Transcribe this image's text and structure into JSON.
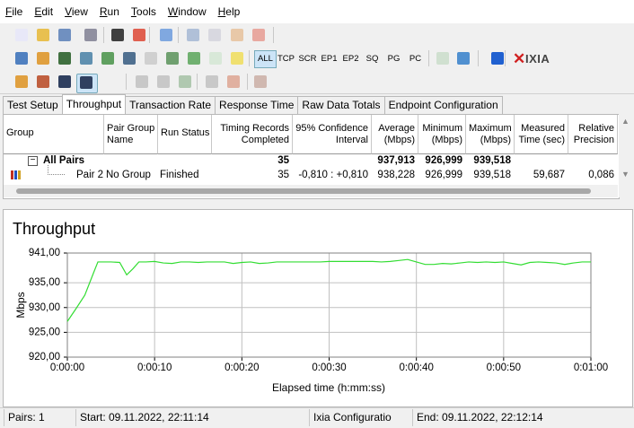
{
  "menu": [
    "File",
    "Edit",
    "View",
    "Run",
    "Tools",
    "Window",
    "Help"
  ],
  "toolbar": {
    "filters": [
      "ALL",
      "TCP",
      "SCR",
      "EP1",
      "EP2",
      "SQ",
      "PG",
      "PC"
    ],
    "pressed_filter": 0,
    "logo": "IXIA"
  },
  "tabs": {
    "items": [
      "Test Setup",
      "Throughput",
      "Transaction Rate",
      "Response Time",
      "Raw Data Totals",
      "Endpoint Configuration"
    ],
    "active": 1
  },
  "table": {
    "columns": [
      [
        "Group"
      ],
      [
        "Pair Group",
        "Name"
      ],
      [
        "Run Status"
      ],
      [
        "Timing Records",
        "Completed"
      ],
      [
        "95% Confidence",
        "Interval"
      ],
      [
        "Average",
        "(Mbps)"
      ],
      [
        "Minimum",
        "(Mbps)"
      ],
      [
        "Maximum",
        "(Mbps)"
      ],
      [
        "Measured",
        "Time (sec)"
      ],
      [
        "Relative",
        "Precision"
      ]
    ],
    "rows": [
      [
        "All Pairs",
        null,
        null,
        "35",
        null,
        "937,913",
        "926,999",
        "939,518",
        null,
        null
      ],
      [
        "Pair 2",
        "No Group",
        "Finished",
        "35",
        "-0,810 : +0,810",
        "938,228",
        "926,999",
        "939,518",
        "59,687",
        "0,086"
      ]
    ]
  },
  "chart_data": {
    "type": "line",
    "title": "Throughput",
    "x_label": "Elapsed time (h:mm:ss)",
    "y_label": "Mbps",
    "xlim": [
      0,
      60
    ],
    "xticks": [
      {
        "value": 0,
        "label": "0:00:00"
      },
      {
        "value": 10,
        "label": "0:00:10"
      },
      {
        "value": 20,
        "label": "0:00:20"
      },
      {
        "value": 30,
        "label": "0:00:30"
      },
      {
        "value": 40,
        "label": "0:00:40"
      },
      {
        "value": 50,
        "label": "0:00:50"
      },
      {
        "value": 60,
        "label": "0:01:00"
      }
    ],
    "ylim": [
      920,
      941
    ],
    "yticks": [
      {
        "value": 920,
        "label": "920,00"
      },
      {
        "value": 925,
        "label": "925,00"
      },
      {
        "value": 930,
        "label": "930,00"
      },
      {
        "value": 935,
        "label": "935,00"
      },
      {
        "value": 941,
        "label": "941,00"
      }
    ],
    "grid": true,
    "x": [
      0,
      1,
      2,
      3,
      3.5,
      4,
      5,
      6,
      6.8,
      7.5,
      8.2,
      9,
      10,
      11,
      12,
      13,
      14,
      15,
      16,
      17,
      18,
      19,
      20,
      21,
      22,
      23,
      24,
      25,
      26,
      27,
      28,
      29,
      30,
      31,
      32,
      33,
      34,
      35,
      36,
      37,
      38,
      39,
      40,
      41,
      42,
      43,
      44,
      45,
      46,
      47,
      48,
      49,
      50,
      51,
      52,
      53,
      54,
      55,
      56,
      57,
      58,
      59,
      60
    ],
    "series": [
      {
        "color": "#33dd33",
        "values": [
          927.2,
          929.8,
          932.5,
          937.0,
          939.2,
          939.2,
          939.2,
          939.1,
          936.6,
          937.8,
          939.2,
          939.2,
          939.3,
          939.0,
          938.9,
          939.2,
          939.2,
          939.1,
          939.2,
          939.2,
          939.2,
          938.9,
          939.1,
          939.2,
          938.9,
          939.0,
          939.2,
          939.2,
          939.2,
          939.2,
          939.2,
          939.2,
          939.3,
          939.3,
          939.3,
          939.3,
          939.3,
          939.3,
          939.2,
          939.3,
          939.5,
          939.7,
          939.2,
          938.7,
          938.7,
          938.9,
          938.8,
          939.0,
          939.2,
          939.1,
          939.2,
          939.1,
          939.2,
          938.9,
          938.6,
          939.1,
          939.2,
          939.1,
          939.0,
          938.7,
          939.0,
          939.2,
          939.2
        ]
      }
    ]
  },
  "status": [
    "Pairs: 1",
    "Start: 09.11.2022, 22:11:14",
    "Ixia Configuratio",
    "End: 09.11.2022, 22:12:14"
  ]
}
